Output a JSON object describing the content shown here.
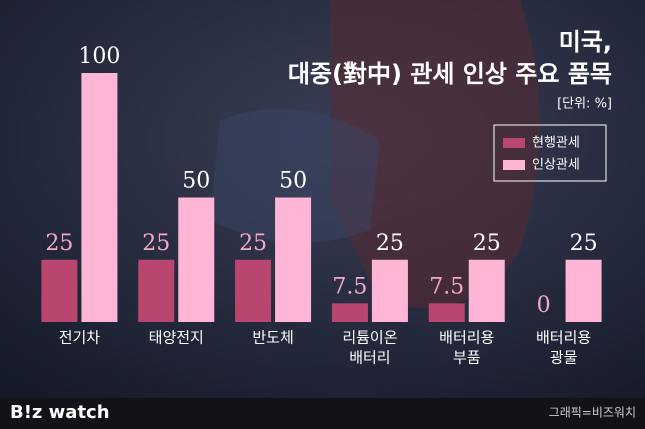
{
  "chart_data": {
    "type": "bar",
    "title": [
      "미국,",
      "대중(對中) 관세 인상 주요 품목"
    ],
    "unit": "[단위: %]",
    "categories": [
      [
        "전기차"
      ],
      [
        "태양전지"
      ],
      [
        "반도체"
      ],
      [
        "리튬이온",
        "배터리"
      ],
      [
        "배터리용",
        "부품"
      ],
      [
        "배터리용",
        "광물"
      ]
    ],
    "series": [
      {
        "name": "현행관세",
        "color": "#b8466f",
        "values": [
          25,
          25,
          25,
          7.5,
          7.5,
          0
        ]
      },
      {
        "name": "인상관세",
        "color": "#ffb6d6",
        "values": [
          100,
          50,
          50,
          25,
          25,
          25
        ]
      }
    ],
    "ylim": [
      0,
      100
    ],
    "legend": "upper-right",
    "footer": {
      "logo": "B!z watch",
      "credit": "그래픽=비즈워치"
    }
  }
}
